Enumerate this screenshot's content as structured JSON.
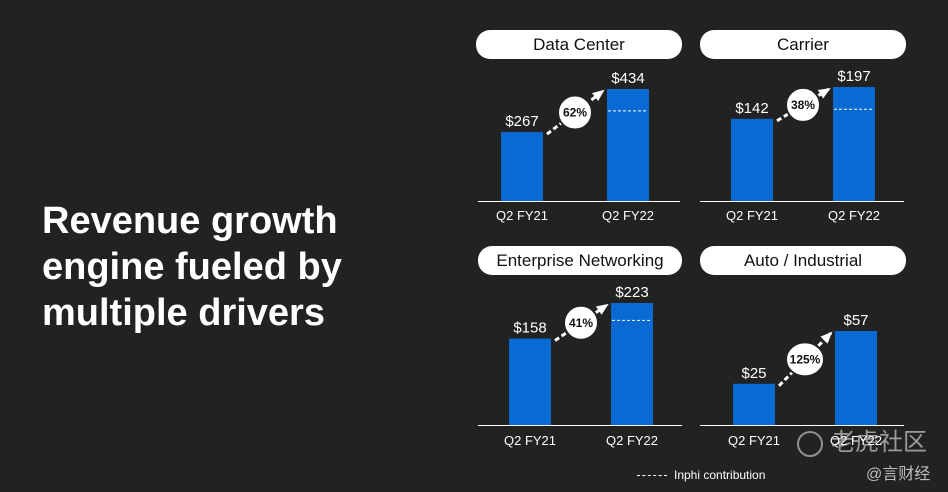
{
  "headline": {
    "line1": "Revenue growth",
    "line2": "engine fueled by",
    "line3": "multiple drivers"
  },
  "colors": {
    "bar": "#0a6ad3",
    "background": "#222222",
    "pill": "#ffffff"
  },
  "chart_data": [
    {
      "type": "bar",
      "title": "Data Center",
      "categories": [
        "Q2 FY21",
        "Q2 FY22"
      ],
      "values": [
        267,
        434
      ],
      "value_labels": [
        "$267",
        "$434"
      ],
      "growth_label": "62%",
      "inphi_contribution_marker": true
    },
    {
      "type": "bar",
      "title": "Carrier",
      "categories": [
        "Q2 FY21",
        "Q2 FY22"
      ],
      "values": [
        142,
        197
      ],
      "value_labels": [
        "$142",
        "$197"
      ],
      "growth_label": "38%",
      "inphi_contribution_marker": true
    },
    {
      "type": "bar",
      "title": "Enterprise Networking",
      "categories": [
        "Q2 FY21",
        "Q2 FY22"
      ],
      "values": [
        158,
        223
      ],
      "value_labels": [
        "$158",
        "$223"
      ],
      "growth_label": "41%",
      "inphi_contribution_marker": true
    },
    {
      "type": "bar",
      "title": "Auto / Industrial",
      "categories": [
        "Q2 FY21",
        "Q2 FY22"
      ],
      "values": [
        25,
        57
      ],
      "value_labels": [
        "$25",
        "$57"
      ],
      "growth_label": "125%",
      "inphi_contribution_marker": false
    }
  ],
  "legend": {
    "label": "Inphi contribution"
  },
  "watermark": {
    "line1": "老虎社区",
    "line2": "@言财经"
  }
}
